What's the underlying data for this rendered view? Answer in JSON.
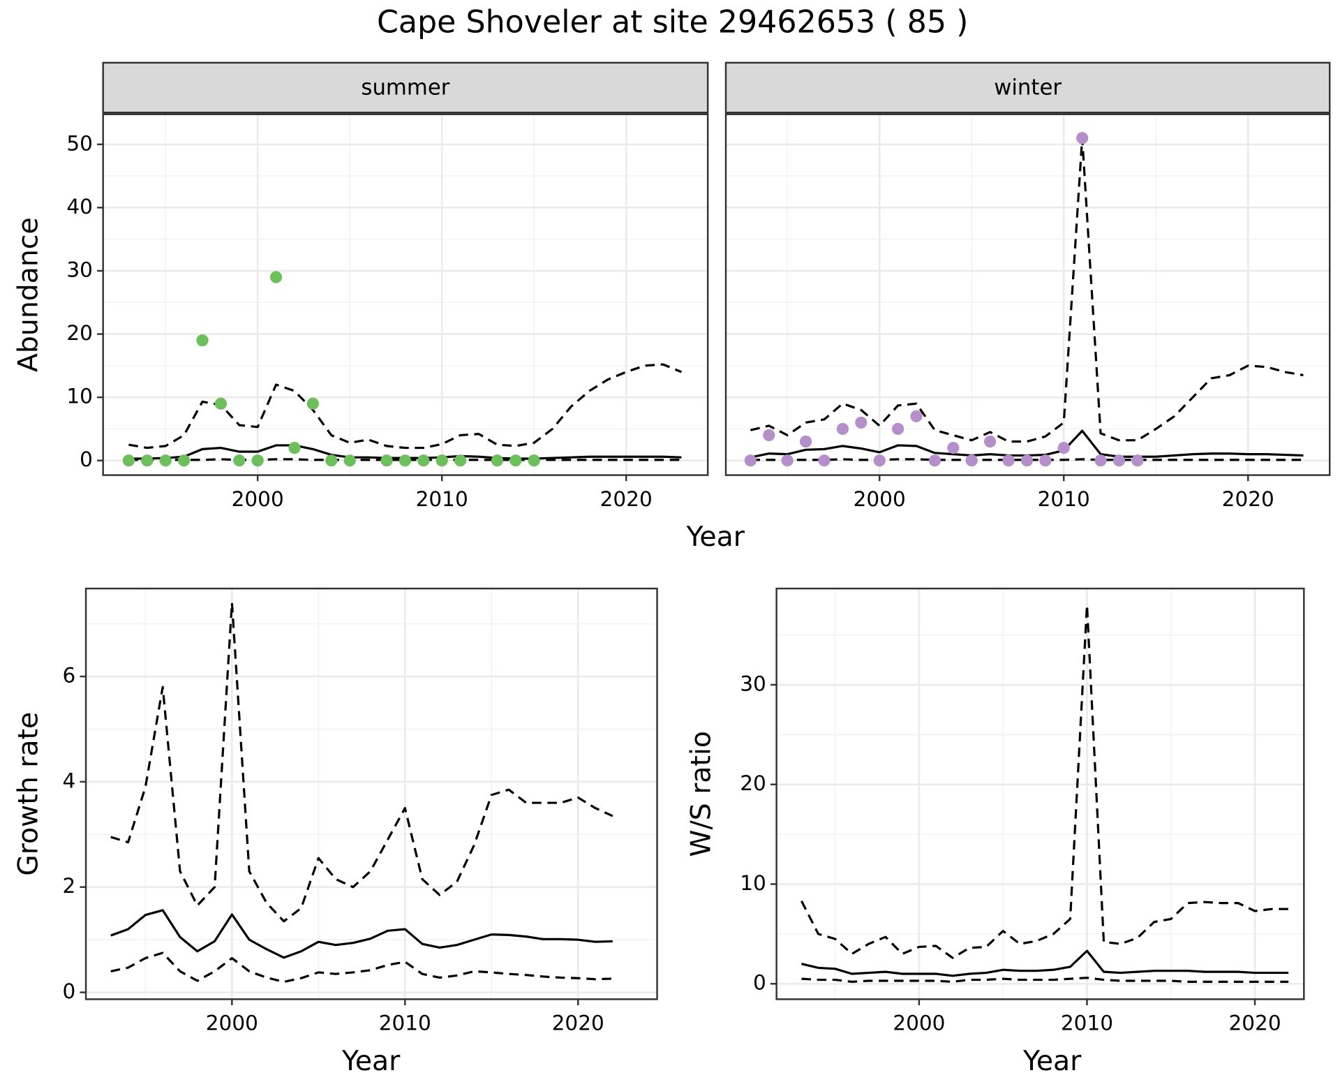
{
  "title": "Cape Shoveler at site 29462653 ( 85 )",
  "chart_data": [
    {
      "type": "line",
      "facet": "summer",
      "xlabel": "Year",
      "ylabel": "Abundance",
      "xlim": [
        1991.61,
        2024.43
      ],
      "ylim": [
        -2.31,
        54.76
      ],
      "xticks": [
        2000,
        2010,
        2020
      ],
      "yticks": [
        0,
        10,
        20,
        30,
        40,
        50
      ],
      "grid": true,
      "minor_grid": true,
      "ytick_labels": true,
      "x": [
        1993,
        1994,
        1995,
        1996,
        1997,
        1998,
        1999,
        2000,
        2001,
        2002,
        2003,
        2004,
        2005,
        2006,
        2007,
        2008,
        2009,
        2010,
        2011,
        2012,
        2013,
        2014,
        2015,
        2016,
        2017,
        2018,
        2019,
        2020,
        2021,
        2022,
        2023
      ],
      "series": [
        {
          "color": "#000000",
          "dash": false,
          "values": [
            0.3,
            0.3,
            0.4,
            0.6,
            1.8,
            2.0,
            1.4,
            1.4,
            2.4,
            2.4,
            1.8,
            0.9,
            0.5,
            0.5,
            0.4,
            0.4,
            0.4,
            0.5,
            0.7,
            0.6,
            0.4,
            0.3,
            0.3,
            0.4,
            0.5,
            0.6,
            0.6,
            0.6,
            0.6,
            0.6,
            0.5
          ]
        },
        {
          "color": "#000000",
          "dash": true,
          "values": [
            2.5,
            2.0,
            2.3,
            4.0,
            9.3,
            8.8,
            5.6,
            5.3,
            12.0,
            11.0,
            8.0,
            4.0,
            2.8,
            3.3,
            2.3,
            2.0,
            2.0,
            2.6,
            4.0,
            4.2,
            2.5,
            2.3,
            2.8,
            5.0,
            8.5,
            11.0,
            12.8,
            14.0,
            15.0,
            15.2,
            14.0
          ]
        },
        {
          "color": "#000000",
          "dash": true,
          "values": [
            0.1,
            0.1,
            0.1,
            0.1,
            0.1,
            0.2,
            0.1,
            0.1,
            0.2,
            0.2,
            0.1,
            0.1,
            0.1,
            0.1,
            0.1,
            0.1,
            0.1,
            0.1,
            0.1,
            0.1,
            0.1,
            0.1,
            0.1,
            0.1,
            0.1,
            0.1,
            0.1,
            0.1,
            0.1,
            0.1,
            0.1
          ]
        }
      ],
      "points": {
        "color": "#6dbf5b",
        "x": [
          1993,
          1994,
          1995,
          1996,
          1997,
          1998,
          1999,
          2000,
          2001,
          2002,
          2003,
          2004,
          2005,
          2007,
          2008,
          2009,
          2010,
          2011,
          2013,
          2014,
          2015
        ],
        "values": [
          0,
          0,
          0,
          0,
          19,
          9,
          0,
          0,
          29,
          2,
          9,
          0,
          0,
          0,
          0,
          0,
          0,
          0,
          0,
          0,
          0
        ]
      }
    },
    {
      "type": "line",
      "facet": "winter",
      "xlim": [
        1991.66,
        2024.43
      ],
      "ylim": [
        -2.31,
        54.76
      ],
      "xticks": [
        2000,
        2010,
        2020
      ],
      "yticks": [
        0,
        10,
        20,
        30,
        40,
        50
      ],
      "grid": true,
      "minor_grid": true,
      "ytick_labels": false,
      "x": [
        1993,
        1994,
        1995,
        1996,
        1997,
        1998,
        1999,
        2000,
        2001,
        2002,
        2003,
        2004,
        2005,
        2006,
        2007,
        2008,
        2009,
        2010,
        2011,
        2012,
        2013,
        2014,
        2015,
        2016,
        2017,
        2018,
        2019,
        2020,
        2021,
        2022,
        2023
      ],
      "series": [
        {
          "color": "#000000",
          "dash": false,
          "values": [
            0.5,
            1.1,
            1.0,
            1.7,
            1.8,
            2.3,
            1.9,
            1.3,
            2.4,
            2.3,
            1.2,
            1.0,
            0.8,
            1.0,
            0.8,
            0.8,
            0.9,
            1.6,
            4.7,
            1.0,
            0.6,
            0.6,
            0.6,
            0.8,
            1.0,
            1.1,
            1.1,
            1.0,
            1.0,
            0.9,
            0.8
          ]
        },
        {
          "color": "#000000",
          "dash": true,
          "values": [
            4.8,
            5.5,
            4.0,
            6.0,
            6.5,
            9.0,
            8.0,
            5.5,
            8.7,
            9.0,
            4.8,
            4.0,
            3.2,
            4.5,
            3.0,
            3.0,
            3.8,
            6.0,
            51.0,
            4.3,
            3.2,
            3.2,
            5.0,
            7.0,
            10.0,
            13.0,
            13.5,
            15.0,
            14.8,
            14.0,
            13.5
          ]
        },
        {
          "color": "#000000",
          "dash": true,
          "values": [
            0.1,
            0.1,
            0.1,
            0.1,
            0.1,
            0.2,
            0.1,
            0.1,
            0.2,
            0.2,
            0.1,
            0.1,
            0.1,
            0.1,
            0.1,
            0.1,
            0.1,
            0.1,
            0.2,
            0.1,
            0.1,
            0.1,
            0.1,
            0.1,
            0.1,
            0.1,
            0.1,
            0.1,
            0.1,
            0.1,
            0.1
          ]
        }
      ],
      "points": {
        "color": "#b48fc9",
        "x": [
          1993,
          1994,
          1995,
          1996,
          1997,
          1998,
          1999,
          2000,
          2001,
          2002,
          2003,
          2004,
          2005,
          2006,
          2007,
          2008,
          2009,
          2010,
          2011,
          2012,
          2013,
          2014
        ],
        "values": [
          0,
          4,
          0,
          3,
          0,
          5,
          6,
          0,
          5,
          7,
          0,
          2,
          0,
          3,
          0,
          0,
          0,
          2,
          51,
          0,
          0,
          0
        ]
      }
    },
    {
      "type": "line",
      "xlabel": "Year",
      "ylabel": "Growth rate",
      "xlim": [
        1991.56,
        2024.57
      ],
      "ylim": [
        -0.13,
        7.67
      ],
      "xticks": [
        2000,
        2010,
        2020
      ],
      "yticks": [
        0,
        2,
        4,
        6
      ],
      "grid": true,
      "minor_grid": true,
      "ytick_labels": true,
      "x": [
        1993,
        1994,
        1995,
        1996,
        1997,
        1998,
        1999,
        2000,
        2001,
        2002,
        2003,
        2004,
        2005,
        2006,
        2007,
        2008,
        2009,
        2010,
        2011,
        2012,
        2013,
        2014,
        2015,
        2016,
        2017,
        2018,
        2019,
        2020,
        2021,
        2022
      ],
      "series": [
        {
          "color": "#000000",
          "dash": false,
          "values": [
            1.08,
            1.2,
            1.47,
            1.56,
            1.05,
            0.78,
            0.97,
            1.48,
            1.0,
            0.82,
            0.66,
            0.78,
            0.96,
            0.9,
            0.94,
            1.02,
            1.17,
            1.2,
            0.92,
            0.85,
            0.9,
            1.0,
            1.1,
            1.09,
            1.06,
            1.01,
            1.01,
            1.0,
            0.96,
            0.97
          ]
        },
        {
          "color": "#000000",
          "dash": true,
          "values": [
            2.95,
            2.85,
            3.9,
            5.8,
            2.3,
            1.65,
            2.0,
            7.4,
            2.3,
            1.7,
            1.35,
            1.6,
            2.55,
            2.15,
            2.0,
            2.3,
            2.9,
            3.5,
            2.15,
            1.85,
            2.1,
            2.8,
            3.75,
            3.85,
            3.6,
            3.6,
            3.6,
            3.7,
            3.5,
            3.35
          ]
        },
        {
          "color": "#000000",
          "dash": true,
          "values": [
            0.4,
            0.47,
            0.65,
            0.75,
            0.4,
            0.22,
            0.4,
            0.65,
            0.4,
            0.28,
            0.2,
            0.27,
            0.38,
            0.35,
            0.38,
            0.42,
            0.52,
            0.58,
            0.35,
            0.28,
            0.32,
            0.4,
            0.38,
            0.35,
            0.33,
            0.3,
            0.28,
            0.27,
            0.25,
            0.26
          ]
        }
      ]
    },
    {
      "type": "line",
      "xlabel": "Year",
      "ylabel": "W/S ratio",
      "xlim": [
        1991.51,
        2022.92
      ],
      "ylim": [
        -1.55,
        39.66
      ],
      "xticks": [
        2000,
        2010,
        2020
      ],
      "yticks": [
        0,
        10,
        20,
        30
      ],
      "grid": true,
      "minor_grid": true,
      "ytick_labels": true,
      "x": [
        1993,
        1994,
        1995,
        1996,
        1997,
        1998,
        1999,
        2000,
        2001,
        2002,
        2003,
        2004,
        2005,
        2006,
        2007,
        2008,
        2009,
        2010,
        2011,
        2012,
        2013,
        2014,
        2015,
        2016,
        2017,
        2018,
        2019,
        2020,
        2021,
        2022
      ],
      "series": [
        {
          "color": "#000000",
          "dash": false,
          "values": [
            2.0,
            1.6,
            1.5,
            1.0,
            1.1,
            1.2,
            1.0,
            1.0,
            1.0,
            0.8,
            1.0,
            1.1,
            1.4,
            1.3,
            1.3,
            1.4,
            1.7,
            3.3,
            1.2,
            1.1,
            1.2,
            1.3,
            1.3,
            1.3,
            1.2,
            1.2,
            1.2,
            1.1,
            1.1,
            1.1
          ]
        },
        {
          "color": "#000000",
          "dash": true,
          "values": [
            8.3,
            5.0,
            4.5,
            3.0,
            4.0,
            4.7,
            3.0,
            3.7,
            3.8,
            2.6,
            3.6,
            3.7,
            5.3,
            4.0,
            4.3,
            5.0,
            6.5,
            38.0,
            4.2,
            4.0,
            4.6,
            6.2,
            6.5,
            8.1,
            8.2,
            8.1,
            8.1,
            7.3,
            7.5,
            7.5
          ]
        },
        {
          "color": "#000000",
          "dash": true,
          "values": [
            0.5,
            0.4,
            0.4,
            0.2,
            0.3,
            0.3,
            0.3,
            0.3,
            0.3,
            0.2,
            0.4,
            0.4,
            0.5,
            0.4,
            0.4,
            0.4,
            0.5,
            0.6,
            0.4,
            0.3,
            0.3,
            0.3,
            0.3,
            0.2,
            0.2,
            0.2,
            0.2,
            0.2,
            0.2,
            0.2
          ]
        }
      ]
    }
  ]
}
